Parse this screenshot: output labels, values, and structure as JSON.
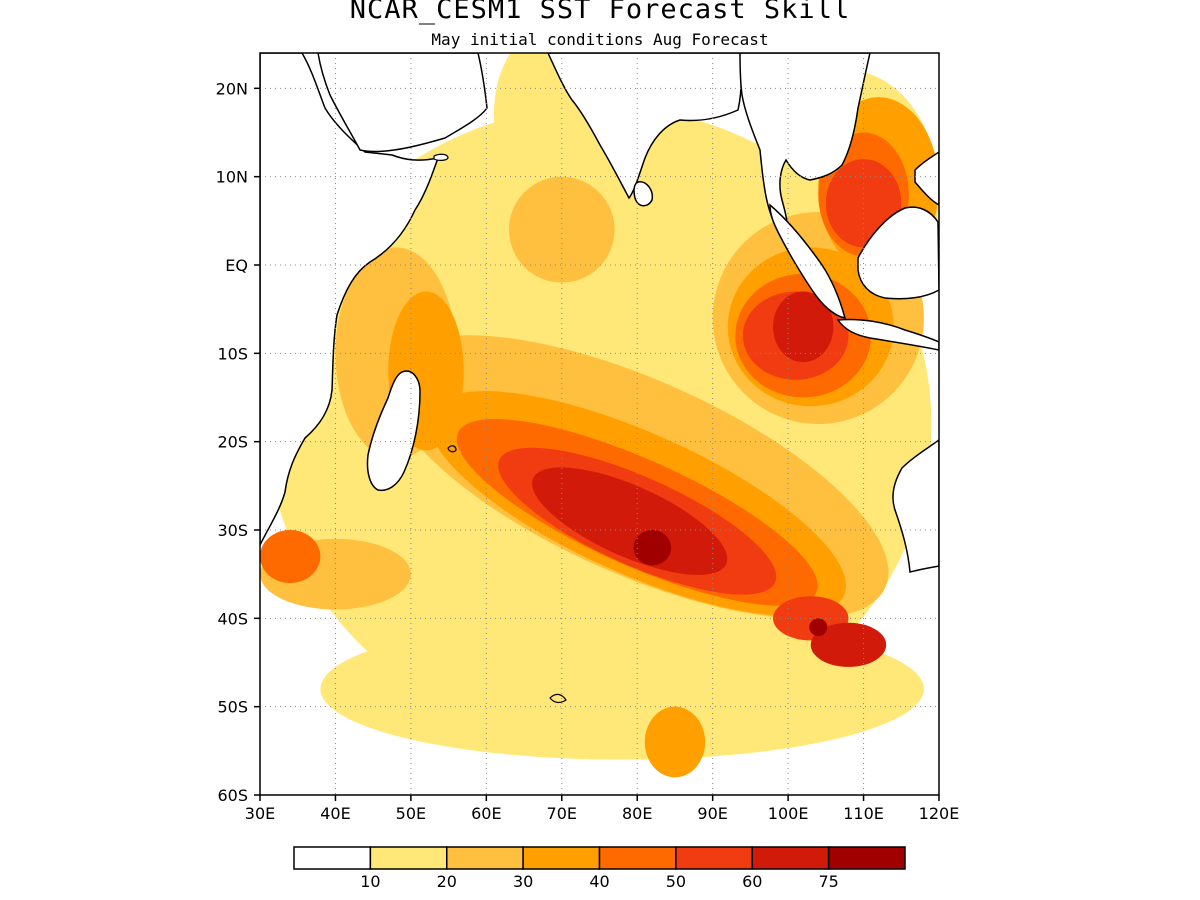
{
  "title": "NCAR_CESM1  SST Forecast Skill",
  "subtitle": "May initial conditions  Aug Forecast",
  "map": {
    "lon_range": [
      30,
      120
    ],
    "lat_range": [
      -60,
      24
    ],
    "lat_ticks": [
      {
        "value": 20,
        "label": "20N"
      },
      {
        "value": 10,
        "label": "10N"
      },
      {
        "value": 0,
        "label": "EQ"
      },
      {
        "value": -10,
        "label": "10S"
      },
      {
        "value": -20,
        "label": "20S"
      },
      {
        "value": -30,
        "label": "30S"
      },
      {
        "value": -40,
        "label": "40S"
      },
      {
        "value": -50,
        "label": "50S"
      },
      {
        "value": -60,
        "label": "60S"
      }
    ],
    "lon_ticks": [
      {
        "value": 30,
        "label": "30E"
      },
      {
        "value": 40,
        "label": "40E"
      },
      {
        "value": 50,
        "label": "50E"
      },
      {
        "value": 60,
        "label": "60E"
      },
      {
        "value": 70,
        "label": "70E"
      },
      {
        "value": 80,
        "label": "80E"
      },
      {
        "value": 90,
        "label": "90E"
      },
      {
        "value": 100,
        "label": "100E"
      },
      {
        "value": 110,
        "label": "110E"
      },
      {
        "value": 120,
        "label": "120E"
      }
    ],
    "grid": true
  },
  "colorbar": {
    "colors": [
      "#ffffff",
      "#ffe878",
      "#ffc040",
      "#ffa000",
      "#ff6a00",
      "#f03c10",
      "#d21a0a",
      "#a00000"
    ],
    "labels": [
      "10",
      "20",
      "30",
      "40",
      "50",
      "60",
      "75"
    ]
  },
  "skill_regions": [
    {
      "level": 1,
      "lon": 75,
      "lat": -18,
      "rx": 44,
      "ry": 36
    },
    {
      "level": 1,
      "lon": 78,
      "lat": -48,
      "rx": 40,
      "ry": 8
    },
    {
      "level": 1,
      "lon": 108,
      "lat": 8,
      "rx": 12,
      "ry": 14
    },
    {
      "level": 1,
      "lon": 67,
      "lat": 17,
      "rx": 6,
      "ry": 9
    },
    {
      "level": 2,
      "lon": 80,
      "lat": -24,
      "rx": 36,
      "ry": 11,
      "rot": 24
    },
    {
      "level": 2,
      "lon": 104,
      "lat": -6,
      "rx": 14,
      "ry": 12
    },
    {
      "level": 2,
      "lon": 48,
      "lat": -10,
      "rx": 8,
      "ry": 12
    },
    {
      "level": 2,
      "lon": 70,
      "lat": 4,
      "rx": 7,
      "ry": 6
    },
    {
      "level": 2,
      "lon": 40,
      "lat": -35,
      "rx": 10,
      "ry": 4
    },
    {
      "level": 3,
      "lon": 80,
      "lat": -27,
      "rx": 30,
      "ry": 8,
      "rot": 24
    },
    {
      "level": 3,
      "lon": 103,
      "lat": -7,
      "rx": 11,
      "ry": 9
    },
    {
      "level": 3,
      "lon": 112,
      "lat": 9,
      "rx": 8,
      "ry": 10
    },
    {
      "level": 3,
      "lon": 52,
      "lat": -12,
      "rx": 5,
      "ry": 9
    },
    {
      "level": 3,
      "lon": 85,
      "lat": -54,
      "rx": 4,
      "ry": 4
    },
    {
      "level": 4,
      "lon": 80,
      "lat": -28,
      "rx": 26,
      "ry": 6,
      "rot": 24
    },
    {
      "level": 4,
      "lon": 102,
      "lat": -8,
      "rx": 9,
      "ry": 7
    },
    {
      "level": 4,
      "lon": 110,
      "lat": 8,
      "rx": 6,
      "ry": 7
    },
    {
      "level": 4,
      "lon": 34,
      "lat": -33,
      "rx": 4,
      "ry": 3
    },
    {
      "level": 5,
      "lon": 80,
      "lat": -29,
      "rx": 20,
      "ry": 5,
      "rot": 24
    },
    {
      "level": 5,
      "lon": 101,
      "lat": -8,
      "rx": 7,
      "ry": 5
    },
    {
      "level": 5,
      "lon": 110,
      "lat": 7,
      "rx": 5,
      "ry": 5
    },
    {
      "level": 5,
      "lon": 103,
      "lat": -40,
      "rx": 5,
      "ry": 2.5
    },
    {
      "level": 6,
      "lon": 79,
      "lat": -29,
      "rx": 14,
      "ry": 4,
      "rot": 24
    },
    {
      "level": 6,
      "lon": 102,
      "lat": -7,
      "rx": 4,
      "ry": 4
    },
    {
      "level": 6,
      "lon": 108,
      "lat": -43,
      "rx": 5,
      "ry": 2.5
    },
    {
      "level": 7,
      "lon": 82,
      "lat": -32,
      "rx": 2.5,
      "ry": 2
    },
    {
      "level": 7,
      "lon": 104,
      "lat": -41,
      "rx": 1.2,
      "ry": 1.0
    }
  ]
}
